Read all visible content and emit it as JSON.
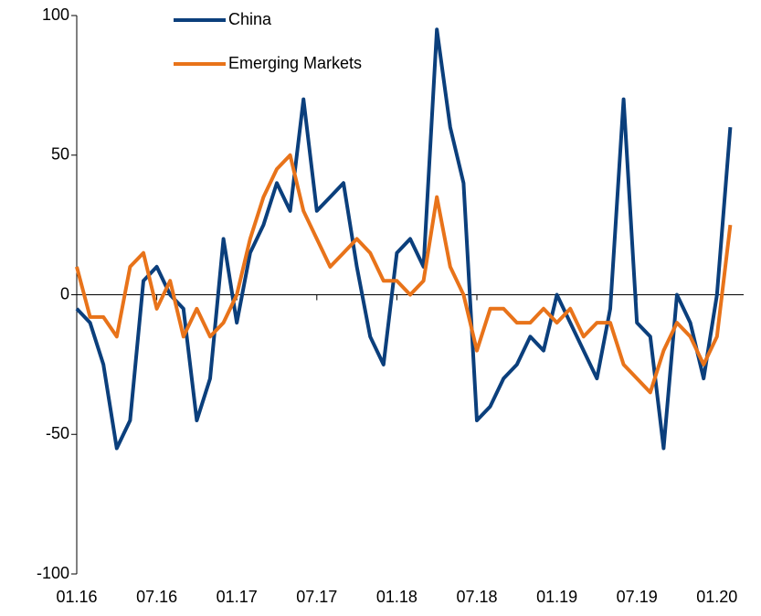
{
  "chart_data": {
    "type": "line",
    "x": [
      "2016-01",
      "2016-02",
      "2016-03",
      "2016-04",
      "2016-05",
      "2016-06",
      "2016-07",
      "2016-08",
      "2016-09",
      "2016-10",
      "2016-11",
      "2016-12",
      "2017-01",
      "2017-02",
      "2017-03",
      "2017-04",
      "2017-05",
      "2017-06",
      "2017-07",
      "2017-08",
      "2017-09",
      "2017-10",
      "2017-11",
      "2017-12",
      "2018-01",
      "2018-02",
      "2018-03",
      "2018-04",
      "2018-05",
      "2018-06",
      "2018-07",
      "2018-08",
      "2018-09",
      "2018-10",
      "2018-11",
      "2018-12",
      "2019-01",
      "2019-02",
      "2019-03",
      "2019-04",
      "2019-05",
      "2019-06",
      "2019-07",
      "2019-08",
      "2019-09",
      "2019-10",
      "2019-11",
      "2019-12",
      "2020-01",
      "2020-02"
    ],
    "series": [
      {
        "name": "China",
        "color": "#0b3f7c",
        "values": [
          -5,
          -10,
          -25,
          -55,
          -45,
          5,
          10,
          0,
          -5,
          -45,
          -30,
          20,
          -10,
          15,
          25,
          40,
          30,
          70,
          30,
          35,
          40,
          10,
          -15,
          -25,
          15,
          20,
          10,
          95,
          60,
          40,
          -45,
          -40,
          -30,
          -25,
          -15,
          -20,
          0,
          -10,
          -20,
          -30,
          -5,
          70,
          -10,
          -15,
          -55,
          0,
          -10,
          -30,
          0,
          60
        ]
      },
      {
        "name": "Emerging Markets",
        "color": "#e8731a",
        "values": [
          10,
          -8,
          -8,
          -15,
          10,
          15,
          -5,
          5,
          -15,
          -5,
          -15,
          -10,
          0,
          20,
          35,
          45,
          50,
          30,
          20,
          10,
          15,
          20,
          15,
          5,
          5,
          0,
          5,
          35,
          10,
          0,
          -20,
          -5,
          -5,
          -10,
          -10,
          -5,
          -10,
          -5,
          -15,
          -10,
          -10,
          -25,
          -30,
          -35,
          -20,
          -10,
          -15,
          -25,
          -15,
          25
        ]
      }
    ],
    "xlim": [
      "2016-01",
      "2020-03"
    ],
    "xticks": [
      {
        "value": "2016-01",
        "label": "01.16"
      },
      {
        "value": "2016-07",
        "label": "07.16"
      },
      {
        "value": "2017-01",
        "label": "01.17"
      },
      {
        "value": "2017-07",
        "label": "07.17"
      },
      {
        "value": "2018-01",
        "label": "01.18"
      },
      {
        "value": "2018-07",
        "label": "07.18"
      },
      {
        "value": "2019-01",
        "label": "01.19"
      },
      {
        "value": "2019-07",
        "label": "07.19"
      },
      {
        "value": "2020-01",
        "label": "01.20"
      }
    ],
    "ylim": [
      -100,
      100
    ],
    "yticks": [
      -100,
      -50,
      0,
      50,
      100
    ]
  }
}
